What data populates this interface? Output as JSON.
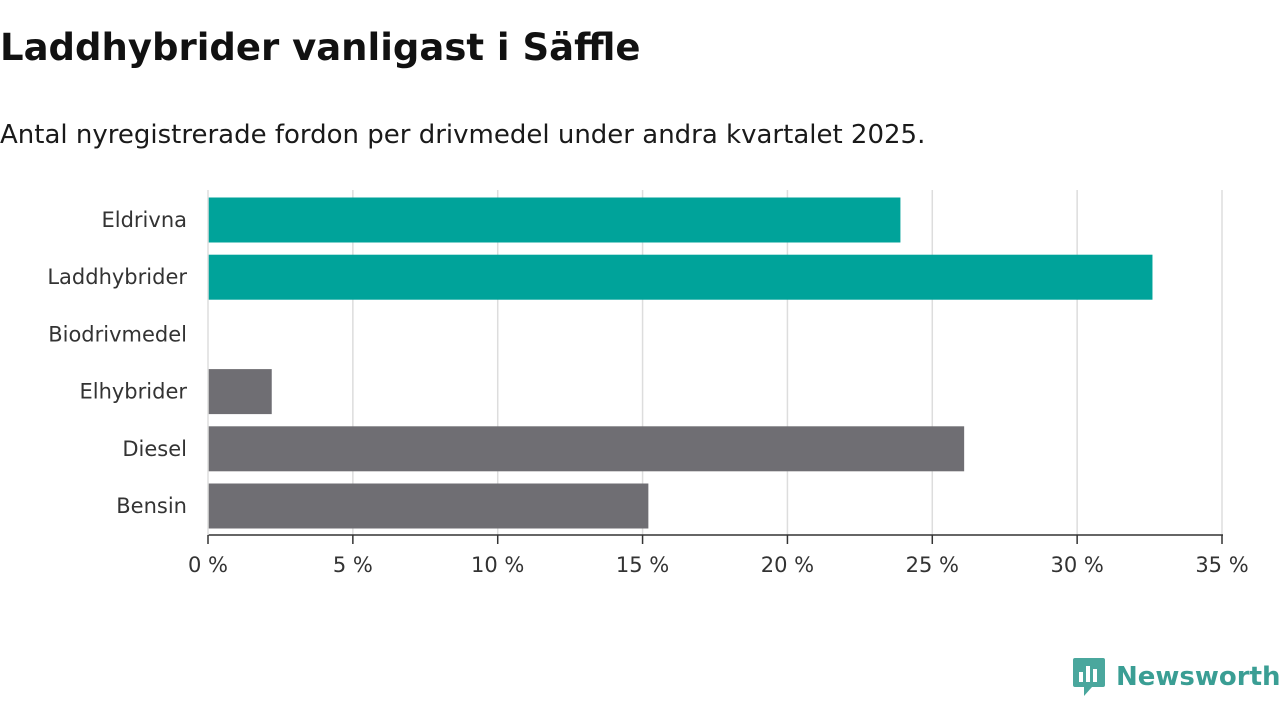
{
  "header": {
    "title": "Laddhybrider vanligast i Säffle",
    "subtitle": "Antal nyregistrerade fordon per drivmedel under andra kvartalet 2025."
  },
  "chart_data": {
    "type": "bar",
    "orientation": "horizontal",
    "title": "Laddhybrider vanligast i Säffle",
    "subtitle": "Antal nyregistrerade fordon per drivmedel under andra kvartalet 2025.",
    "categories": [
      "Eldrivna",
      "Laddhybrider",
      "Biodrivmedel",
      "Elhybrider",
      "Diesel",
      "Bensin"
    ],
    "values": [
      23.9,
      32.6,
      0,
      2.2,
      26.1,
      15.2
    ],
    "colors": [
      "#00a39a",
      "#00a39a",
      "#6f6e73",
      "#6f6e73",
      "#6f6e73",
      "#6f6e73"
    ],
    "xlim": [
      0,
      35
    ],
    "xticks": [
      0,
      5,
      10,
      15,
      20,
      25,
      30,
      35
    ],
    "xtick_labels": [
      "0 %",
      "5 %",
      "10 %",
      "15 %",
      "20 %",
      "25 %",
      "30 %",
      "35 %"
    ],
    "unit": "%",
    "grid": true,
    "xlabel": "",
    "ylabel": ""
  },
  "brand": {
    "name": "Newsworthy",
    "icon": "newsworthy-logo-icon",
    "color": "#3a9e94"
  }
}
